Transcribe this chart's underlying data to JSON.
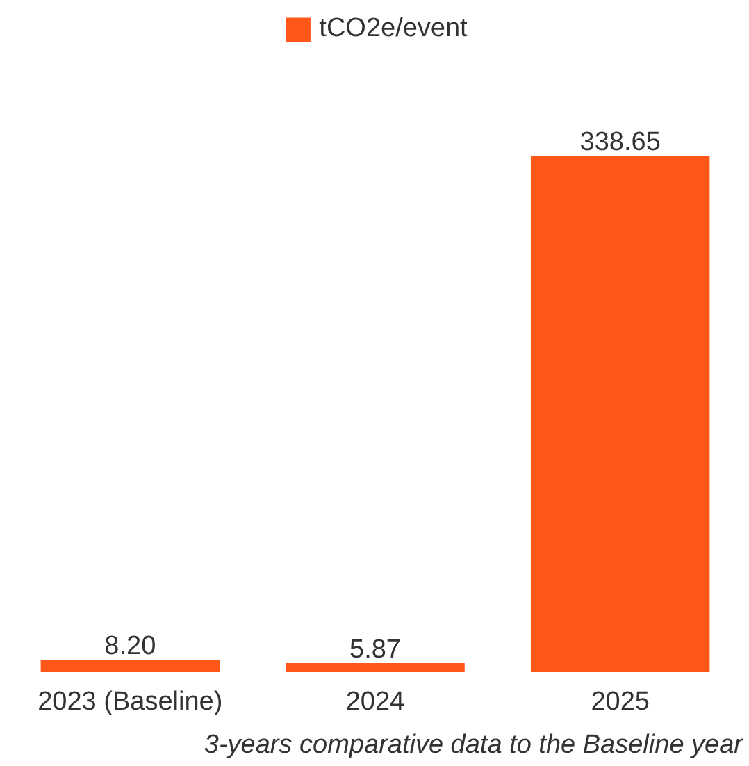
{
  "chart_data": {
    "type": "bar",
    "categories": [
      "2023 (Baseline)",
      "2024",
      "2025"
    ],
    "series": [
      {
        "name": "tCO2e/event",
        "color": "#ff5719",
        "values": [
          8.2,
          5.87,
          338.65
        ],
        "value_labels": [
          "8.20",
          "5.87",
          "338.65"
        ]
      }
    ],
    "legend": "top",
    "annotations": [
      "3-years comparative data to the Baseline year"
    ]
  }
}
